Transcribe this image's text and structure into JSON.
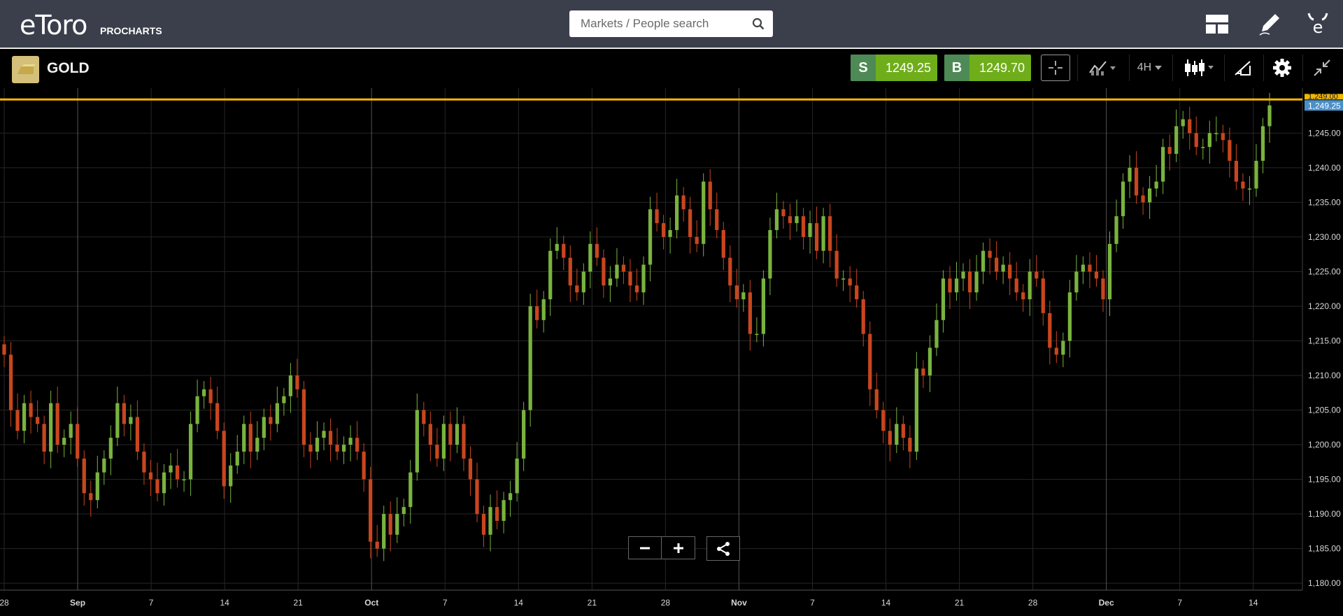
{
  "header": {
    "logo": "eToro",
    "logo_sub": "PROCHARTS",
    "search_placeholder": "Markets / People search",
    "icons": [
      "layout-icon",
      "pencil-icon",
      "etoro-profile-icon"
    ]
  },
  "instrument": {
    "name": "GOLD",
    "icon": "gold-bar-icon",
    "sell_label": "S",
    "sell_price": "1249.25",
    "buy_label": "B",
    "buy_price": "1249.70"
  },
  "toolbar": {
    "timeframe": "4H",
    "icons": [
      "crosshair-icon",
      "indicators-icon",
      "candlestick-icon",
      "drawing-icon",
      "gear-icon",
      "collapse-icon"
    ]
  },
  "colors": {
    "up": "#79b33f",
    "down": "#c8461e",
    "price_line": "#f2b705",
    "price_label": "#4a90c8",
    "header_bg": "#3a3f4b"
  },
  "chart_data": {
    "type": "candlestick",
    "y_ticks": [
      "1,180.00",
      "1,185.00",
      "1,190.00",
      "1,195.00",
      "1,200.00",
      "1,205.00",
      "1,210.00",
      "1,215.00",
      "1,220.00",
      "1,225.00",
      "1,230.00",
      "1,235.00",
      "1,240.00",
      "1,245.00"
    ],
    "ylim": [
      1179,
      1251.5
    ],
    "x_ticks": [
      "28",
      "Sep",
      "7",
      "14",
      "21",
      "Oct",
      "7",
      "14",
      "21",
      "28",
      "Nov",
      "7",
      "14",
      "21",
      "28",
      "Dec",
      "7",
      "14"
    ],
    "grid": true,
    "price_line_value": 1249.25,
    "price_line_label": "1,249.25",
    "resistance_label": "1,249.00",
    "closes": [
      1213,
      1205,
      1202,
      1206,
      1204,
      1203,
      1199,
      1206,
      1200,
      1201,
      1203,
      1198,
      1193,
      1192,
      1196,
      1198,
      1201,
      1206,
      1203,
      1204,
      1199,
      1196,
      1195,
      1193,
      1196,
      1197,
      1195,
      1195,
      1203,
      1207,
      1208,
      1206,
      1202,
      1194,
      1197,
      1199,
      1203,
      1199,
      1201,
      1204,
      1203,
      1206,
      1207,
      1210,
      1208,
      1200,
      1199,
      1201,
      1202,
      1200,
      1199,
      1200,
      1201,
      1199,
      1195,
      1186,
      1185,
      1190,
      1187,
      1190,
      1191,
      1196,
      1205,
      1203,
      1200,
      1198,
      1203,
      1200,
      1203,
      1198,
      1195,
      1190,
      1187,
      1191,
      1189,
      1192,
      1193,
      1198,
      1205,
      1220,
      1218,
      1221,
      1228,
      1229,
      1227,
      1223,
      1222,
      1225,
      1229,
      1227,
      1223,
      1224,
      1226,
      1225,
      1223,
      1222,
      1226,
      1234,
      1232,
      1230,
      1231,
      1236,
      1234,
      1230,
      1229,
      1238,
      1234,
      1231,
      1227,
      1223,
      1221,
      1222,
      1216,
      1216,
      1224,
      1231,
      1234,
      1233,
      1232,
      1233,
      1230,
      1232,
      1228,
      1233,
      1228,
      1224,
      1224,
      1223,
      1221,
      1216,
      1208,
      1205,
      1202,
      1200,
      1203,
      1201,
      1199,
      1211,
      1210,
      1214,
      1218,
      1224,
      1222,
      1224,
      1225,
      1222,
      1225,
      1228,
      1227,
      1225,
      1226,
      1224,
      1222,
      1221,
      1225,
      1224,
      1219,
      1214,
      1213,
      1215,
      1222,
      1225,
      1226,
      1225,
      1224,
      1221,
      1229,
      1233,
      1238,
      1240,
      1236,
      1235,
      1237,
      1238,
      1243,
      1242,
      1246,
      1247,
      1245,
      1243,
      1243,
      1245,
      1245,
      1244,
      1241,
      1238,
      1237,
      1237,
      1241,
      1246,
      1249
    ]
  }
}
